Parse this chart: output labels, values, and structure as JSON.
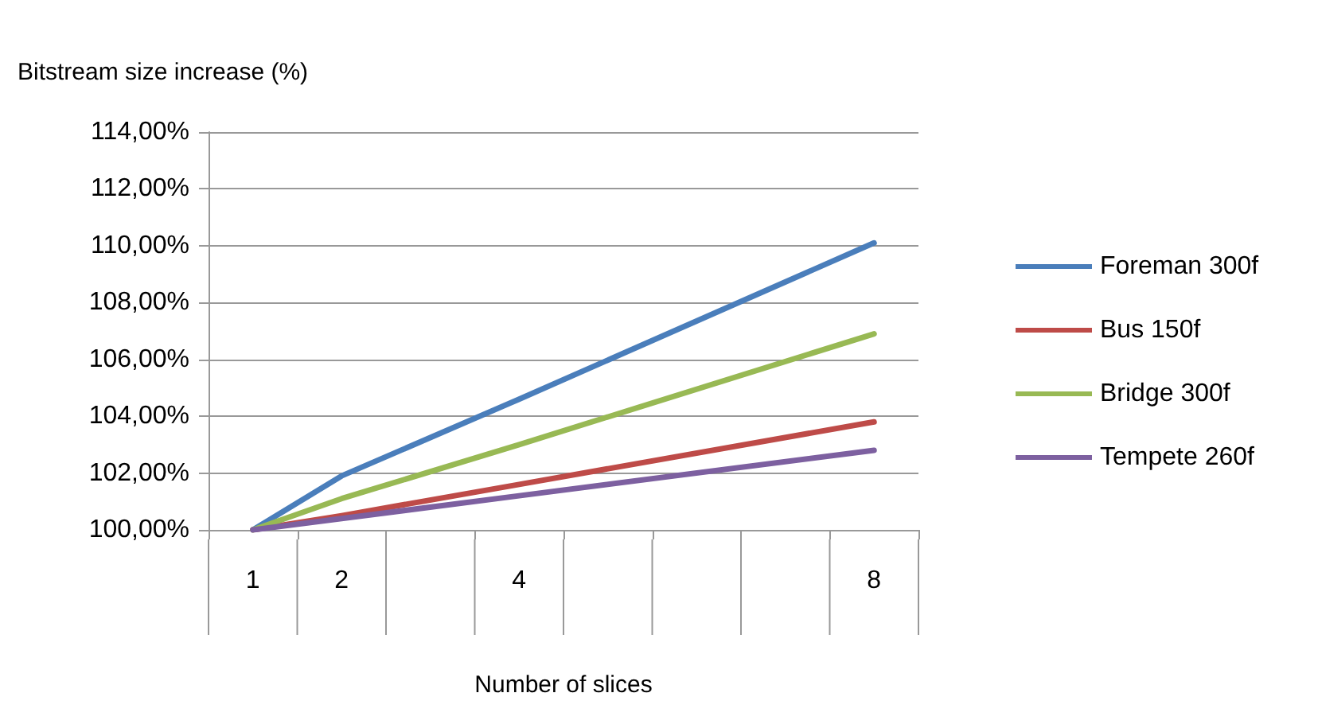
{
  "chart_data": {
    "type": "line",
    "ylabel": "Bitstream size increase (%)",
    "xlabel": "Number of slices",
    "x": [
      1,
      2,
      4,
      8
    ],
    "series": [
      {
        "name": "Foreman 300f",
        "color": "#4a7ebb",
        "values": [
          100,
          101.9,
          104.6,
          110.1
        ]
      },
      {
        "name": "Bus 150f",
        "color": "#be4b48",
        "values": [
          100,
          100.5,
          101.6,
          103.8
        ]
      },
      {
        "name": "Bridge 300f",
        "color": "#98b954",
        "values": [
          100,
          101.1,
          103.0,
          106.9
        ]
      },
      {
        "name": "Tempete 260f",
        "color": "#7d60a0",
        "values": [
          100,
          100.4,
          101.2,
          102.8
        ]
      }
    ],
    "xlim": [
      0.5,
      8.5
    ],
    "xticks": [
      {
        "value": 0.5,
        "label": null
      },
      1,
      {
        "value": 1.5,
        "label": null
      },
      2,
      {
        "value": 2.5,
        "label": null
      },
      {
        "value": 3.5,
        "label": null
      },
      4,
      {
        "value": 4.5,
        "label": null
      },
      {
        "value": 5.5,
        "label": null
      },
      {
        "value": 6.5,
        "label": null
      },
      {
        "value": 7.5,
        "label": null
      },
      8,
      {
        "value": 8.5,
        "label": null
      }
    ],
    "ylim": [
      100,
      114
    ],
    "yticks": [
      {
        "value": 100,
        "label": "100,00%"
      },
      {
        "value": 102,
        "label": "102,00%"
      },
      {
        "value": 104,
        "label": "104,00%"
      },
      {
        "value": 106,
        "label": "106,00%"
      },
      {
        "value": 108,
        "label": "108,00%"
      },
      {
        "value": 110,
        "label": "110,00%"
      },
      {
        "value": 112,
        "label": "112,00%"
      },
      {
        "value": 114,
        "label": "114,00%"
      }
    ],
    "grid": "y",
    "legend": "right",
    "marker": "none",
    "line_style": "solid"
  }
}
